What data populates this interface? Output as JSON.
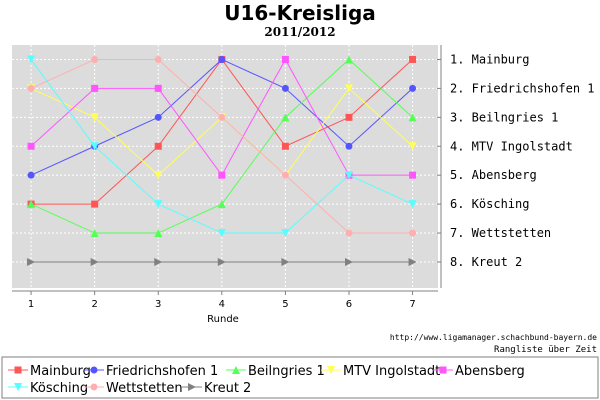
{
  "chart_data": {
    "type": "line",
    "title": "U16-Kreisliga",
    "subtitle": "2011/2012",
    "xlabel": "Runde",
    "ylabel": "",
    "x": [
      1,
      2,
      3,
      4,
      5,
      6,
      7
    ],
    "xlim": [
      0.7,
      7.4
    ],
    "ylim": [
      0.5,
      8.9
    ],
    "y_inverted": true,
    "grid": true,
    "legend_position": "bottom",
    "rank_labels": [
      "1. Mainburg",
      "2. Friedrichshofen 1",
      "3. Beilngries 1",
      "4. MTV Ingolstadt",
      "5. Abensberg",
      "6. Kösching",
      "7. Wettstetten",
      "8. Kreut 2"
    ],
    "source_url": "http://www.ligamanager.schachbund-bayern.de",
    "caption": "Rangliste über Zeit",
    "series": [
      {
        "name": "Mainburg",
        "values": [
          6,
          6,
          4,
          1,
          4,
          3,
          1
        ],
        "color": "#ff5555",
        "marker": "square"
      },
      {
        "name": "Friedrichshofen 1",
        "values": [
          5,
          4,
          3,
          1,
          2,
          4,
          2
        ],
        "color": "#5555ff",
        "marker": "circle"
      },
      {
        "name": "Beilngries 1",
        "values": [
          6,
          7,
          7,
          6,
          3,
          1,
          3
        ],
        "color": "#55ff55",
        "marker": "triangle-up"
      },
      {
        "name": "MTV Ingolstadt",
        "values": [
          2,
          3,
          5,
          3,
          5,
          2,
          4
        ],
        "color": "#ffff55",
        "marker": "triangle-down"
      },
      {
        "name": "Abensberg",
        "values": [
          4,
          2,
          2,
          5,
          1,
          5,
          5
        ],
        "color": "#ff55ff",
        "marker": "square"
      },
      {
        "name": "Kösching",
        "values": [
          1,
          4,
          6,
          7,
          7,
          5,
          6
        ],
        "color": "#55ffff",
        "marker": "triangle-down"
      },
      {
        "name": "Wettstetten",
        "values": [
          2,
          1,
          1,
          3,
          5,
          7,
          7
        ],
        "color": "#ffafaf",
        "marker": "circle"
      },
      {
        "name": "Kreut 2",
        "values": [
          8,
          8,
          8,
          8,
          8,
          8,
          8
        ],
        "color": "#808080",
        "marker": "triangle-right"
      }
    ]
  }
}
